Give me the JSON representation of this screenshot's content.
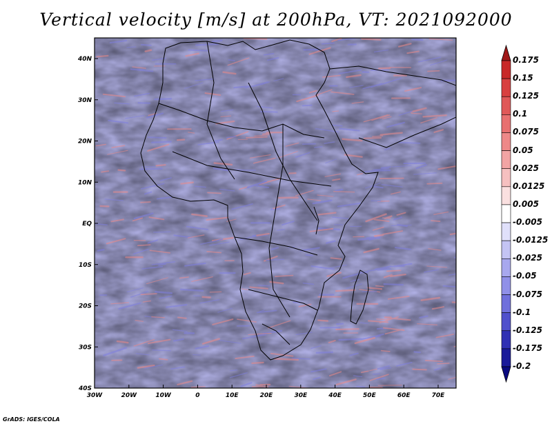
{
  "title": "Vertical velocity [m/s] at 200hPa, VT: 2021092000",
  "credit": "GrADS: IGES/COLA",
  "lat_labels": [
    "40N",
    "30N",
    "20N",
    "10N",
    "EQ",
    "10S",
    "20S",
    "30S",
    "40S"
  ],
  "lon_labels": [
    "30W",
    "20W",
    "10W",
    "0",
    "10E",
    "20E",
    "30E",
    "40E",
    "50E",
    "60E",
    "70E"
  ],
  "colorbar": {
    "levels": [
      "0.175",
      "0.15",
      "0.125",
      "0.1",
      "0.075",
      "0.05",
      "0.025",
      "0.0125",
      "0.005",
      "-0.005",
      "-0.0125",
      "-0.025",
      "-0.05",
      "-0.075",
      "-0.1",
      "-0.125",
      "-0.175",
      "-0.2"
    ],
    "colors": [
      "#a01818",
      "#c82828",
      "#d84040",
      "#e05858",
      "#e87070",
      "#ee8888",
      "#f2a4a4",
      "#f6c0c0",
      "#fae0e0",
      "#ffffff",
      "#e0e0fa",
      "#c4c4f4",
      "#a8a8ee",
      "#9090e8",
      "#7070dc",
      "#5050cc",
      "#3030b4",
      "#1a1a9a",
      "#0a0a80"
    ]
  }
}
